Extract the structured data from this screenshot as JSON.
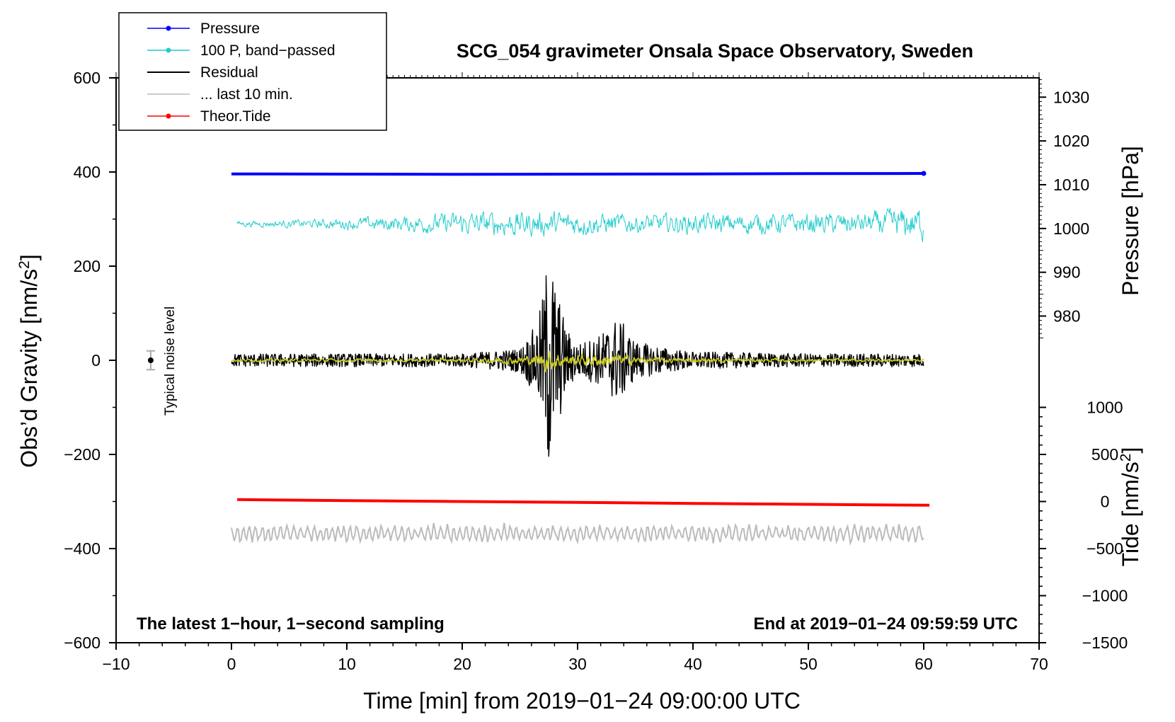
{
  "chart_data": {
    "type": "line",
    "title": "SCG_054 gravimeter Onsala Space Observatory, Sweden",
    "xlabel": "Time [min] from 2019−01−24 09:00:00 UTC",
    "ylabel_left": "Obs’d Gravity [nm/s",
    "ylabel_left_sup": "2",
    "ylabel_left_close": "]",
    "ylabel_right_pressure": "Pressure [hPa]",
    "ylabel_right_tide": "Tide [nm/s",
    "ylabel_right_tide_sup": "2",
    "ylabel_right_tide_close": "]",
    "xlim": [
      -10,
      70
    ],
    "ylim": [
      -600,
      600
    ],
    "x_ticks": [
      -10,
      0,
      10,
      20,
      30,
      40,
      50,
      60,
      70
    ],
    "x_tick_labels": [
      "−10",
      "0",
      "10",
      "20",
      "30",
      "40",
      "50",
      "60",
      "70"
    ],
    "y_ticks": [
      -600,
      -400,
      -200,
      0,
      200,
      400,
      600
    ],
    "y_tick_labels": [
      "−600",
      "−400",
      "−200",
      "0",
      "200",
      "400",
      "600"
    ],
    "pressure_axis": {
      "ticks": [
        980,
        990,
        1000,
        1010,
        1020,
        1030
      ],
      "tick_labels": [
        "980",
        "990",
        "1000",
        "1010",
        "1020",
        "1030"
      ],
      "gravity_at_1000": 280,
      "gravity_per_hpa": 9.3
    },
    "tide_axis": {
      "ticks": [
        -1500,
        -1000,
        -500,
        0,
        500,
        1000
      ],
      "tick_labels": [
        "−1500",
        "−1000",
        "−500",
        "0",
        "500",
        "1000"
      ],
      "gravity_at_0": -300,
      "gravity_per_unit": 0.2
    },
    "legend": [
      {
        "label": "Pressure",
        "color": "#0000ff",
        "marker": true
      },
      {
        "label": "100 P, band−passed",
        "color": "#22cccc",
        "marker": true
      },
      {
        "label": "Residual",
        "color": "#000000",
        "marker": false
      },
      {
        "label": "... last 10 min.",
        "color": "#bbbbbb",
        "marker": false
      },
      {
        "label": "Theor.Tide",
        "color": "#ff0000",
        "marker": true
      }
    ],
    "annotations": {
      "bottom_left": "The latest 1−hour, 1−second sampling",
      "bottom_right": "End at 2019−01−24 09:59:59 UTC",
      "noise_label": "Typical noise level"
    },
    "noise_bar": {
      "x": -7,
      "y": 0,
      "half_range": 20
    },
    "series": [
      {
        "name": "Pressure",
        "color": "#0000ff",
        "x_start": 0,
        "x_end": 60,
        "points": [
          [
            0,
            396
          ],
          [
            10,
            395.5
          ],
          [
            20,
            395
          ],
          [
            30,
            395.5
          ],
          [
            40,
            396
          ],
          [
            50,
            396.5
          ],
          [
            60,
            397
          ]
        ]
      },
      {
        "name": "100 P, band−passed",
        "color": "#22cccc",
        "x_start": 0.5,
        "x_end": 60,
        "baseline": 290,
        "envelope": [
          [
            0.5,
            10
          ],
          [
            7,
            15
          ],
          [
            15,
            28
          ],
          [
            20,
            40
          ],
          [
            25,
            45
          ],
          [
            30,
            40
          ],
          [
            35,
            32
          ],
          [
            40,
            35
          ],
          [
            47,
            35
          ],
          [
            55,
            38
          ],
          [
            60,
            60
          ]
        ]
      },
      {
        "name": "Residual",
        "color": "#000000",
        "x_start": 0,
        "x_end": 60,
        "baseline": 0,
        "envelope": [
          [
            0,
            14
          ],
          [
            10,
            14
          ],
          [
            20,
            14
          ],
          [
            25,
            25
          ],
          [
            26.5,
            80
          ],
          [
            27,
            140
          ],
          [
            27.5,
            250
          ],
          [
            28,
            180
          ],
          [
            29,
            70
          ],
          [
            30,
            35
          ],
          [
            32,
            55
          ],
          [
            33.5,
            95
          ],
          [
            35,
            40
          ],
          [
            38,
            25
          ],
          [
            40,
            18
          ],
          [
            50,
            14
          ],
          [
            60,
            14
          ]
        ]
      },
      {
        "name": "Residual (filtered)",
        "color": "#cccc22",
        "x_start": 0,
        "x_end": 60,
        "baseline": 0,
        "envelope": [
          [
            0,
            5
          ],
          [
            20,
            6
          ],
          [
            26,
            15
          ],
          [
            27.5,
            40
          ],
          [
            29,
            20
          ],
          [
            33,
            22
          ],
          [
            36,
            10
          ],
          [
            45,
            6
          ],
          [
            60,
            5
          ]
        ]
      },
      {
        "name": "Theor.Tide",
        "color": "#ff0000",
        "x_start": 0.5,
        "x_end": 60.5,
        "points": [
          [
            0.5,
            -296
          ],
          [
            10,
            -298
          ],
          [
            20,
            -300
          ],
          [
            30,
            -302
          ],
          [
            40,
            -304
          ],
          [
            50,
            -306
          ],
          [
            60.5,
            -308
          ]
        ]
      },
      {
        "name": "... last 10 min.",
        "color": "#bbbbbb",
        "x_start": 0,
        "x_end": 60,
        "baseline": -368,
        "envelope": [
          [
            0,
            20
          ],
          [
            60,
            20
          ]
        ]
      }
    ]
  }
}
